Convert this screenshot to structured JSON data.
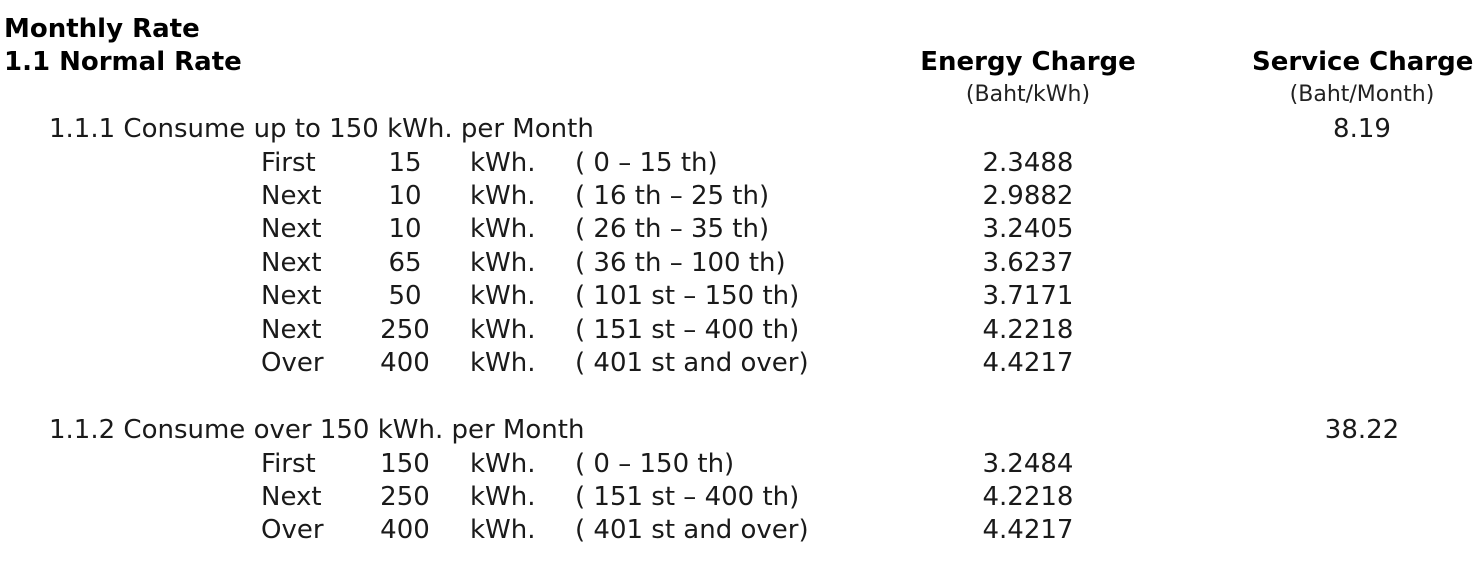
{
  "document": {
    "title": "Monthly Rate",
    "subtitle": "1.1 Normal Rate",
    "columns": {
      "energy": {
        "label": "Energy Charge",
        "unit": "(Baht/kWh)"
      },
      "service": {
        "label": "Service Charge",
        "unit": "(Baht/Month)"
      }
    },
    "sections": [
      {
        "title": "1.1.1 Consume up to 150 kWh. per Month",
        "service_charge": "8.19",
        "rows": [
          {
            "label": "First",
            "qty": "15",
            "unit": "kWh.",
            "range": "( 0 – 15 th)",
            "rate": "2.3488"
          },
          {
            "label": "Next",
            "qty": "10",
            "unit": "kWh.",
            "range": "( 16 th – 25 th)",
            "rate": "2.9882"
          },
          {
            "label": "Next",
            "qty": "10",
            "unit": "kWh.",
            "range": "( 26 th – 35 th)",
            "rate": "3.2405"
          },
          {
            "label": "Next",
            "qty": "65",
            "unit": "kWh.",
            "range": "( 36 th – 100 th)",
            "rate": "3.6237"
          },
          {
            "label": "Next",
            "qty": "50",
            "unit": "kWh.",
            "range": "( 101 st – 150 th)",
            "rate": "3.7171"
          },
          {
            "label": "Next",
            "qty": "250",
            "unit": "kWh.",
            "range": "( 151 st – 400 th)",
            "rate": "4.2218"
          },
          {
            "label": "Over",
            "qty": "400",
            "unit": "kWh.",
            "range": "( 401 st and over)",
            "rate": "4.4217"
          }
        ]
      },
      {
        "title": "1.1.2 Consume over 150 kWh. per Month",
        "service_charge": "38.22",
        "rows": [
          {
            "label": "First",
            "qty": "150",
            "unit": "kWh.",
            "range": "( 0 – 150 th)",
            "rate": "3.2484"
          },
          {
            "label": "Next",
            "qty": "250",
            "unit": "kWh.",
            "range": "( 151 st – 400 th)",
            "rate": "4.2218"
          },
          {
            "label": "Over",
            "qty": "400",
            "unit": "kWh.",
            "range": "( 401 st and over)",
            "rate": "4.4217"
          }
        ]
      }
    ]
  }
}
